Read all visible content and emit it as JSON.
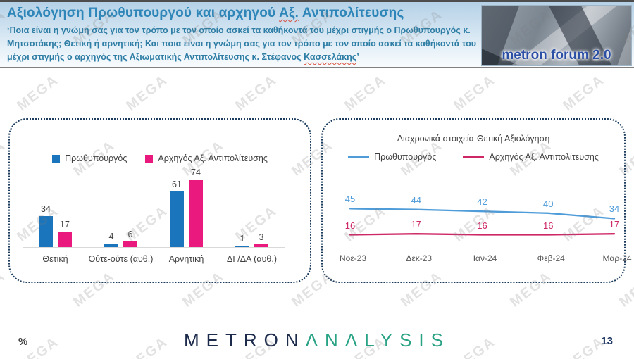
{
  "header": {
    "title": {
      "pre": "Αξιολόγηση Πρωθυπουργού και αρχηγού ",
      "underlined": "Αξ.",
      "post": " Αντιπολίτευσης"
    },
    "subtitle_line1": "‘Ποια είναι η γνώμη σας για τον τρόπο με τον οποίο ασκεί τα καθήκοντά του μέχρι στιγμής ο Πρωθυπουργός κ.",
    "subtitle_line2": "Μητσοτάκης; Θετική ή αρνητική; Και ποια είναι η γνώμη σας για τον τρόπο με τον οποίο ασκεί τα καθήκοντά",
    "subtitle_line3": {
      "pre": "του μέχρι στιγμής ο αρχηγός της Αξιωματικής Αντιπολίτευσης κ. Στέφανος ",
      "underlined": "Κασσελάκης",
      "post": "’"
    },
    "brand_photo_text": "metron forum 2.0"
  },
  "chart_data": [
    {
      "type": "bar",
      "title": "",
      "categories": [
        "Θετική",
        "Ούτε-ούτε (αυθ.)",
        "Αρνητική",
        "ΔΓ/ΔΑ (αυθ.)"
      ],
      "series": [
        {
          "name": "Πρωθυπουργός",
          "color": "#1b75bc",
          "values": [
            34,
            4,
            61,
            1
          ]
        },
        {
          "name": "Αρχηγός Αξ. Αντιπολίτευσης",
          "color": "#e9197e",
          "values": [
            17,
            6,
            74,
            3
          ]
        }
      ],
      "legend_position": "top",
      "ylim": [
        0,
        80
      ],
      "grid": false
    },
    {
      "type": "line",
      "title": "Διαχρονικά στοιχεία-Θετική Αξιολόγηση",
      "x": [
        "Νοε-23",
        "Δεκ-23",
        "Ιαν-24",
        "Φεβ-24",
        "Μαρ-24"
      ],
      "series": [
        {
          "name": "Πρωθυπουργός",
          "color": "#4f9cd9",
          "values": [
            45,
            44,
            42,
            40,
            34
          ]
        },
        {
          "name": "Αρχηγός Αξ. Αντιπολίτευσης",
          "color": "#ce2766",
          "values": [
            16,
            17,
            16,
            16,
            17
          ]
        }
      ],
      "legend_position": "top",
      "grid": false
    }
  ],
  "watermark": {
    "text": "MEGA"
  },
  "footer": {
    "percent_label": "%",
    "logo": {
      "part1": "METRON",
      "part2": "ΛNΛLYSIS"
    },
    "page_number": "13"
  }
}
